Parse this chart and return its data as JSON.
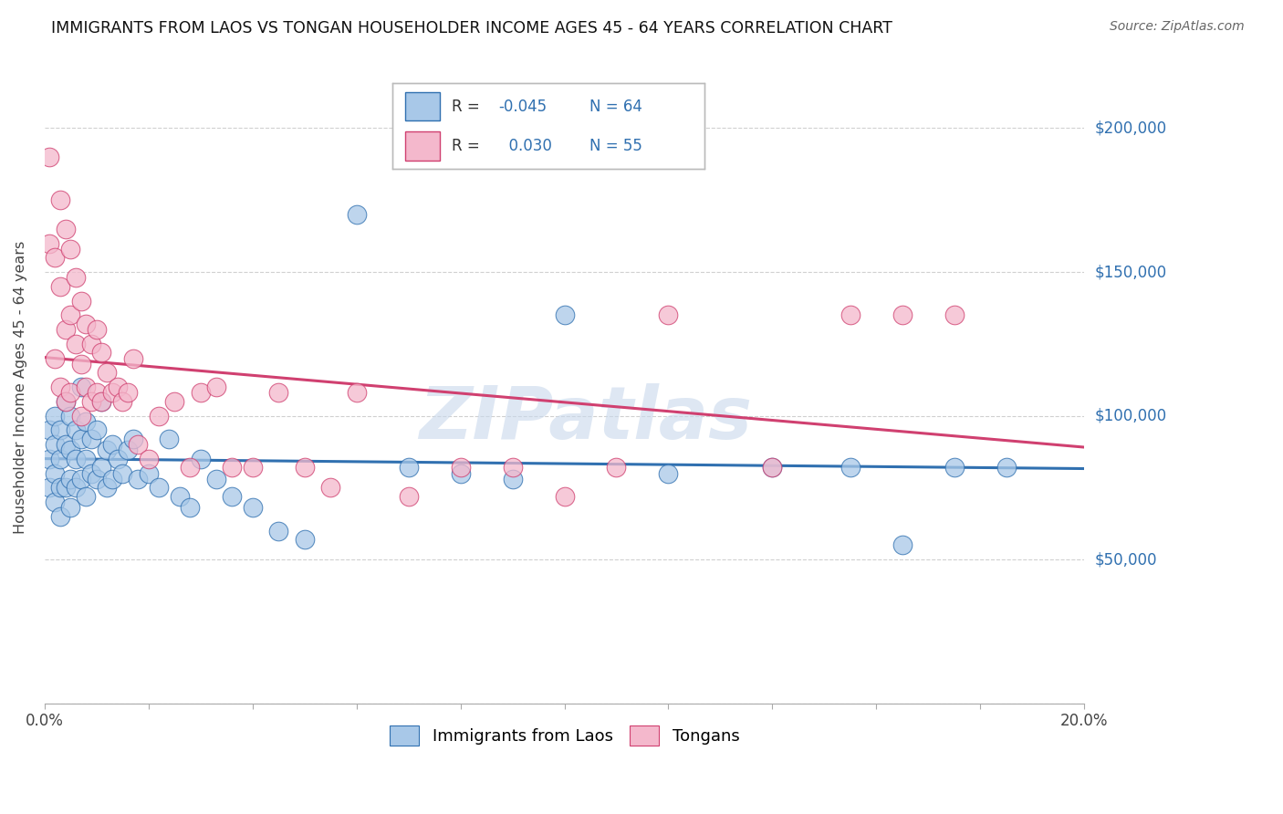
{
  "title": "IMMIGRANTS FROM LAOS VS TONGAN HOUSEHOLDER INCOME AGES 45 - 64 YEARS CORRELATION CHART",
  "source": "Source: ZipAtlas.com",
  "ylabel": "Householder Income Ages 45 - 64 years",
  "yticks": [
    0,
    50000,
    100000,
    150000,
    200000
  ],
  "ytick_labels": [
    "",
    "$50,000",
    "$100,000",
    "$150,000",
    "$200,000"
  ],
  "xlim": [
    0.0,
    0.2
  ],
  "ylim": [
    0,
    220000
  ],
  "legend_label1": "Immigrants from Laos",
  "legend_label2": "Tongans",
  "R1": -0.045,
  "N1": 64,
  "R2": 0.03,
  "N2": 55,
  "color_blue": "#a8c8e8",
  "color_pink": "#f4b8cc",
  "line_color_blue": "#3070b0",
  "line_color_pink": "#d04070",
  "watermark_color": "#c8d8ec",
  "blue_scatter_x": [
    0.001,
    0.001,
    0.001,
    0.002,
    0.002,
    0.002,
    0.002,
    0.003,
    0.003,
    0.003,
    0.003,
    0.004,
    0.004,
    0.004,
    0.005,
    0.005,
    0.005,
    0.005,
    0.006,
    0.006,
    0.006,
    0.007,
    0.007,
    0.007,
    0.008,
    0.008,
    0.008,
    0.009,
    0.009,
    0.01,
    0.01,
    0.011,
    0.011,
    0.012,
    0.012,
    0.013,
    0.013,
    0.014,
    0.015,
    0.016,
    0.017,
    0.018,
    0.02,
    0.022,
    0.024,
    0.026,
    0.028,
    0.03,
    0.033,
    0.036,
    0.04,
    0.045,
    0.05,
    0.06,
    0.07,
    0.08,
    0.09,
    0.1,
    0.12,
    0.14,
    0.155,
    0.165,
    0.175,
    0.185
  ],
  "blue_scatter_y": [
    95000,
    85000,
    75000,
    100000,
    90000,
    80000,
    70000,
    95000,
    85000,
    75000,
    65000,
    105000,
    90000,
    75000,
    100000,
    88000,
    78000,
    68000,
    95000,
    85000,
    75000,
    110000,
    92000,
    78000,
    98000,
    85000,
    72000,
    92000,
    80000,
    95000,
    78000,
    105000,
    82000,
    88000,
    75000,
    90000,
    78000,
    85000,
    80000,
    88000,
    92000,
    78000,
    80000,
    75000,
    92000,
    72000,
    68000,
    85000,
    78000,
    72000,
    68000,
    60000,
    57000,
    170000,
    82000,
    80000,
    78000,
    135000,
    80000,
    82000,
    82000,
    55000,
    82000,
    82000
  ],
  "pink_scatter_x": [
    0.001,
    0.001,
    0.002,
    0.002,
    0.003,
    0.003,
    0.003,
    0.004,
    0.004,
    0.004,
    0.005,
    0.005,
    0.005,
    0.006,
    0.006,
    0.007,
    0.007,
    0.007,
    0.008,
    0.008,
    0.009,
    0.009,
    0.01,
    0.01,
    0.011,
    0.011,
    0.012,
    0.013,
    0.014,
    0.015,
    0.016,
    0.017,
    0.018,
    0.02,
    0.022,
    0.025,
    0.028,
    0.03,
    0.033,
    0.036,
    0.04,
    0.045,
    0.05,
    0.055,
    0.06,
    0.07,
    0.08,
    0.09,
    0.1,
    0.11,
    0.12,
    0.14,
    0.155,
    0.165,
    0.175
  ],
  "pink_scatter_y": [
    190000,
    160000,
    155000,
    120000,
    175000,
    145000,
    110000,
    165000,
    130000,
    105000,
    158000,
    135000,
    108000,
    148000,
    125000,
    140000,
    118000,
    100000,
    132000,
    110000,
    125000,
    105000,
    130000,
    108000,
    122000,
    105000,
    115000,
    108000,
    110000,
    105000,
    108000,
    120000,
    90000,
    85000,
    100000,
    105000,
    82000,
    108000,
    110000,
    82000,
    82000,
    108000,
    82000,
    75000,
    108000,
    72000,
    82000,
    82000,
    72000,
    82000,
    135000,
    82000,
    135000,
    135000,
    135000
  ]
}
